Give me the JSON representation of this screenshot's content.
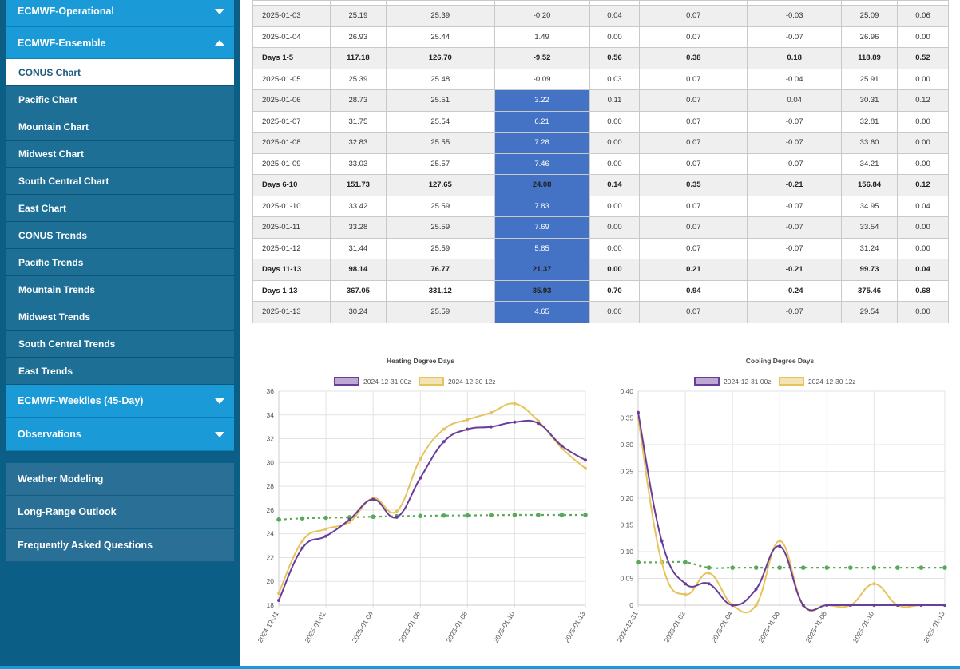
{
  "sidebar": {
    "accordions": [
      {
        "label": "ECMWF-Operational",
        "state": "collapsed"
      },
      {
        "label": "ECMWF-Ensemble",
        "state": "expanded"
      },
      {
        "label": "ECMWF-Weeklies (45-Day)",
        "state": "collapsed"
      },
      {
        "label": "Observations",
        "state": "collapsed"
      }
    ],
    "ensemble_items": [
      {
        "label": "CONUS Chart",
        "active": true
      },
      {
        "label": "Pacific Chart"
      },
      {
        "label": "Mountain Chart"
      },
      {
        "label": "Midwest Chart"
      },
      {
        "label": "South Central Chart"
      },
      {
        "label": "East Chart"
      },
      {
        "label": "CONUS Trends"
      },
      {
        "label": "Pacific Trends"
      },
      {
        "label": "Mountain Trends"
      },
      {
        "label": "Midwest Trends"
      },
      {
        "label": "South Central Trends"
      },
      {
        "label": "East Trends"
      }
    ],
    "lower_links": [
      {
        "label": "Weather Modeling"
      },
      {
        "label": "Long-Range Outlook"
      },
      {
        "label": "Frequently Asked Questions"
      }
    ]
  },
  "table": {
    "rows": [
      {
        "cells": [
          "2025-01-03",
          "25.19",
          "25.39",
          "-0.20",
          "0.04",
          "0.07",
          "-0.03",
          "25.09",
          "0.06"
        ],
        "style": "grey",
        "highlight": false
      },
      {
        "cells": [
          "2025-01-04",
          "26.93",
          "25.44",
          "1.49",
          "0.00",
          "0.07",
          "-0.07",
          "26.96",
          "0.00"
        ],
        "style": "white",
        "highlight": false
      },
      {
        "cells": [
          "Days 1-5",
          "117.18",
          "126.70",
          "-9.52",
          "0.56",
          "0.38",
          "0.18",
          "118.89",
          "0.52"
        ],
        "style": "bold",
        "highlight": false
      },
      {
        "cells": [
          "2025-01-05",
          "25.39",
          "25.48",
          "-0.09",
          "0.03",
          "0.07",
          "-0.04",
          "25.91",
          "0.00"
        ],
        "style": "white",
        "highlight": false
      },
      {
        "cells": [
          "2025-01-06",
          "28.73",
          "25.51",
          "3.22",
          "0.11",
          "0.07",
          "0.04",
          "30.31",
          "0.12"
        ],
        "style": "grey",
        "highlight": true
      },
      {
        "cells": [
          "2025-01-07",
          "31.75",
          "25.54",
          "6.21",
          "0.00",
          "0.07",
          "-0.07",
          "32.81",
          "0.00"
        ],
        "style": "white",
        "highlight": true
      },
      {
        "cells": [
          "2025-01-08",
          "32.83",
          "25.55",
          "7.28",
          "0.00",
          "0.07",
          "-0.07",
          "33.60",
          "0.00"
        ],
        "style": "grey",
        "highlight": true
      },
      {
        "cells": [
          "2025-01-09",
          "33.03",
          "25.57",
          "7.46",
          "0.00",
          "0.07",
          "-0.07",
          "34.21",
          "0.00"
        ],
        "style": "white",
        "highlight": true
      },
      {
        "cells": [
          "Days 6-10",
          "151.73",
          "127.65",
          "24.08",
          "0.14",
          "0.35",
          "-0.21",
          "156.84",
          "0.12"
        ],
        "style": "bold",
        "highlight": true
      },
      {
        "cells": [
          "2025-01-10",
          "33.42",
          "25.59",
          "7.83",
          "0.00",
          "0.07",
          "-0.07",
          "34.95",
          "0.04"
        ],
        "style": "white",
        "highlight": true
      },
      {
        "cells": [
          "2025-01-11",
          "33.28",
          "25.59",
          "7.69",
          "0.00",
          "0.07",
          "-0.07",
          "33.54",
          "0.00"
        ],
        "style": "grey",
        "highlight": true
      },
      {
        "cells": [
          "2025-01-12",
          "31.44",
          "25.59",
          "5.85",
          "0.00",
          "0.07",
          "-0.07",
          "31.24",
          "0.00"
        ],
        "style": "white",
        "highlight": true
      },
      {
        "cells": [
          "Days 11-13",
          "98.14",
          "76.77",
          "21.37",
          "0.00",
          "0.21",
          "-0.21",
          "99.73",
          "0.04"
        ],
        "style": "bold",
        "highlight": true
      },
      {
        "cells": [
          "Days 1-13",
          "367.05",
          "331.12",
          "35.93",
          "0.70",
          "0.94",
          "-0.24",
          "375.46",
          "0.68"
        ],
        "style": "boldwhite",
        "highlight": true
      },
      {
        "cells": [
          "2025-01-13",
          "30.24",
          "25.59",
          "4.65",
          "0.00",
          "0.07",
          "-0.07",
          "29.54",
          "0.00"
        ],
        "style": "grey",
        "highlight": true
      }
    ]
  },
  "chart_data": [
    {
      "type": "line",
      "title": "Heating Degree Days",
      "x": [
        "2024-12-31",
        "2025-01-01",
        "2025-01-02",
        "2025-01-03",
        "2025-01-04",
        "2025-01-05",
        "2025-01-06",
        "2025-01-07",
        "2025-01-08",
        "2025-01-09",
        "2025-01-10",
        "2025-01-11",
        "2025-01-12",
        "2025-01-13"
      ],
      "x_tick_labels": [
        "2024-12-31",
        "2025-01-02",
        "2025-01-04",
        "2025-01-06",
        "2025-01-08",
        "2025-01-10",
        "2025-01-13"
      ],
      "ylim": [
        18,
        36
      ],
      "y_ticks": [
        18,
        20,
        22,
        24,
        26,
        28,
        30,
        32,
        34,
        36
      ],
      "grid": true,
      "legend_position": "top",
      "series": [
        {
          "name": "2024-12-31 00z",
          "color": "#6a3d9a",
          "values": [
            18.4,
            22.8,
            23.8,
            25.2,
            26.9,
            25.4,
            28.7,
            31.75,
            32.8,
            33.0,
            33.4,
            33.3,
            31.4,
            30.2
          ]
        },
        {
          "name": "2024-12-30 12z",
          "color": "#e6c35c",
          "values": [
            19.0,
            23.4,
            24.4,
            25.0,
            27.0,
            25.9,
            30.3,
            32.8,
            33.6,
            34.2,
            34.95,
            33.5,
            31.2,
            29.5
          ]
        },
        {
          "name": "",
          "color": "#5aa85a",
          "dashed": true,
          "values": [
            25.2,
            25.3,
            25.35,
            25.39,
            25.44,
            25.48,
            25.51,
            25.54,
            25.55,
            25.57,
            25.59,
            25.59,
            25.59,
            25.59
          ]
        }
      ]
    },
    {
      "type": "line",
      "title": "Cooling Degree Days",
      "x": [
        "2024-12-31",
        "2025-01-01",
        "2025-01-02",
        "2025-01-03",
        "2025-01-04",
        "2025-01-05",
        "2025-01-06",
        "2025-01-07",
        "2025-01-08",
        "2025-01-09",
        "2025-01-10",
        "2025-01-11",
        "2025-01-12",
        "2025-01-13"
      ],
      "x_tick_labels": [
        "2024-12-31",
        "2025-01-02",
        "2025-01-04",
        "2025-01-06",
        "2025-01-08",
        "2025-01-10",
        "2025-01-13"
      ],
      "ylim": [
        0,
        0.4
      ],
      "y_ticks": [
        0,
        0.05,
        0.1,
        0.15,
        0.2,
        0.25,
        0.3,
        0.35,
        0.4
      ],
      "y_tick_labels": [
        "0",
        "0.05",
        "0.10",
        "0.15",
        "0.20",
        "0.25",
        "0.30",
        "0.35",
        "0.40"
      ],
      "grid": true,
      "legend_position": "top",
      "series": [
        {
          "name": "2024-12-31 00z",
          "color": "#6a3d9a",
          "values": [
            0.36,
            0.12,
            0.04,
            0.04,
            0.0,
            0.03,
            0.11,
            0.0,
            0.0,
            0.0,
            0.0,
            0.0,
            0.0,
            0.0
          ]
        },
        {
          "name": "2024-12-30 12z",
          "color": "#e6c35c",
          "values": [
            0.35,
            0.08,
            0.02,
            0.06,
            0.0,
            0.0,
            0.12,
            0.0,
            0.0,
            0.0,
            0.04,
            0.0,
            0.0,
            0.0
          ]
        },
        {
          "name": "",
          "color": "#5aa85a",
          "dashed": true,
          "values": [
            0.08,
            0.08,
            0.08,
            0.07,
            0.07,
            0.07,
            0.07,
            0.07,
            0.07,
            0.07,
            0.07,
            0.07,
            0.07,
            0.07
          ]
        }
      ]
    }
  ]
}
